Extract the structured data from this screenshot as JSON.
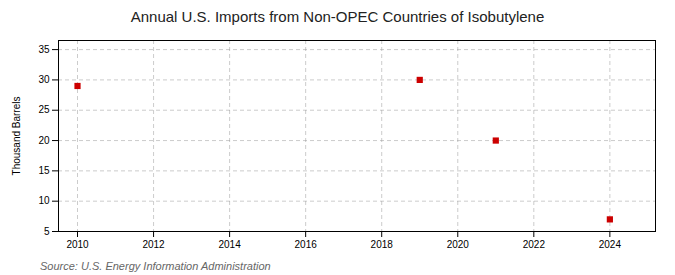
{
  "chart_data": {
    "type": "scatter",
    "title": "Annual U.S. Imports from Non-OPEC Countries of Isobutylene",
    "ylabel": "Thousand Barrels",
    "source": "Source: U.S. Energy Information Administration",
    "x": [
      2010,
      2019,
      2021,
      2024
    ],
    "values": [
      29,
      30,
      20,
      7
    ],
    "color": "#cc0000",
    "marker": "square",
    "xlim": [
      2009.5,
      2025.2
    ],
    "ylim": [
      5,
      36.5
    ],
    "xticks": [
      2010,
      2012,
      2014,
      2016,
      2018,
      2020,
      2022,
      2024
    ],
    "yticks": [
      5,
      10,
      15,
      20,
      25,
      30,
      35
    ],
    "grid": true
  }
}
